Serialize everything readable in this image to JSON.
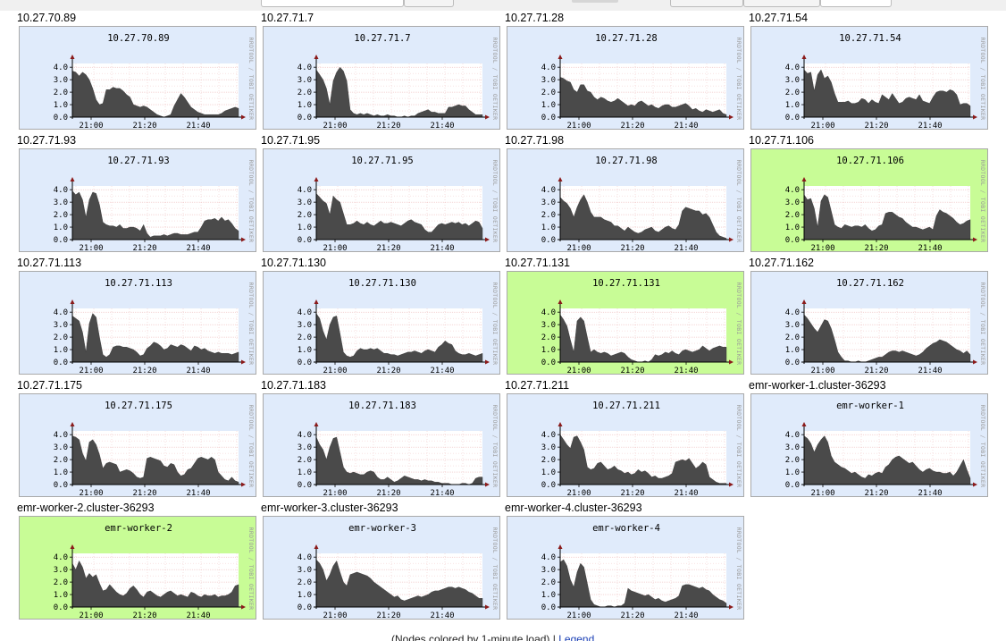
{
  "colors": {
    "normal_bg": "#e0ebfb",
    "hot_bg": "#c8fc96",
    "area": "#4a4a4a",
    "grid": "#e8a3a3"
  },
  "footer": {
    "caption": "(Nodes colored by 1-minute load) |",
    "legend_link": "Legend"
  },
  "graphs": [
    {
      "host": "10.27.70.89",
      "label": "10.27.70.89",
      "hot": false,
      "values": [
        3.7,
        3.6,
        3.3,
        3.6,
        3.4,
        3.0,
        2.3,
        1.4,
        1.0,
        1.1,
        2.2,
        2.2,
        2.4,
        2.3,
        2.3,
        2.1,
        1.8,
        1.6,
        1.0,
        0.9,
        0.8,
        0.9,
        0.8,
        0.6,
        0.4,
        0.2,
        0.1,
        0.0,
        0.1,
        0.2,
        0.9,
        1.4,
        1.9,
        1.6,
        1.2,
        0.8,
        0.6,
        0.4,
        0.3,
        0.2,
        0.2,
        0.2,
        0.2,
        0.2,
        0.3,
        0.5,
        0.6,
        0.7,
        0.8,
        0.7
      ]
    },
    {
      "host": "10.27.71.7",
      "label": "10.27.71.7",
      "hot": false,
      "values": [
        3.8,
        3.4,
        3.0,
        2.3,
        1.0,
        2.9,
        3.6,
        4.0,
        3.7,
        2.9,
        0.6,
        0.3,
        0.2,
        0.3,
        0.2,
        0.3,
        0.2,
        0.1,
        0.2,
        0.1,
        0.1,
        0.2,
        0.1,
        0.1,
        0.0,
        0.0,
        0.1,
        0.0,
        0.1,
        0.1,
        0.3,
        0.4,
        0.5,
        0.6,
        0.4,
        0.4,
        0.3,
        0.3,
        0.3,
        0.8,
        0.8,
        0.9,
        1.0,
        0.9,
        0.9,
        0.6,
        0.4,
        0.2,
        0.2,
        0.2
      ]
    },
    {
      "host": "10.27.71.28",
      "label": "10.27.71.28",
      "hot": false,
      "values": [
        3.2,
        3.1,
        2.9,
        2.8,
        2.2,
        2.0,
        2.6,
        2.6,
        2.1,
        2.0,
        1.6,
        1.4,
        1.6,
        1.5,
        1.3,
        1.2,
        1.3,
        1.5,
        1.3,
        1.1,
        0.9,
        1.0,
        0.9,
        1.2,
        1.3,
        1.1,
        0.9,
        1.0,
        0.8,
        0.7,
        0.9,
        1.0,
        1.0,
        0.8,
        0.8,
        0.9,
        1.0,
        1.1,
        0.9,
        0.6,
        0.7,
        0.5,
        0.4,
        0.6,
        0.5,
        0.4,
        0.5,
        0.6,
        0.3,
        0.2
      ]
    },
    {
      "host": "10.27.71.54",
      "label": "10.27.71.54",
      "hot": false,
      "values": [
        3.8,
        3.5,
        3.6,
        2.1,
        3.4,
        3.8,
        3.1,
        3.3,
        2.8,
        1.9,
        1.2,
        1.2,
        1.2,
        1.3,
        1.1,
        1.1,
        1.2,
        1.5,
        1.4,
        1.1,
        1.4,
        1.2,
        1.1,
        1.8,
        1.6,
        1.4,
        1.9,
        1.5,
        1.1,
        1.2,
        1.5,
        1.6,
        1.5,
        1.4,
        1.8,
        1.3,
        1.2,
        1.1,
        1.6,
        2.0,
        2.1,
        2.1,
        2.0,
        2.2,
        2.1,
        1.8,
        1.0,
        1.1,
        1.1,
        0.9
      ]
    },
    {
      "host": "10.27.71.93",
      "label": "10.27.71.93",
      "hot": false,
      "values": [
        3.9,
        3.6,
        3.8,
        3.2,
        1.8,
        3.2,
        3.8,
        3.7,
        2.8,
        1.4,
        1.2,
        1.1,
        1.1,
        1.0,
        1.2,
        0.9,
        0.9,
        1.0,
        1.0,
        0.9,
        0.7,
        1.2,
        0.5,
        0.2,
        0.3,
        0.3,
        0.3,
        0.4,
        0.3,
        0.4,
        0.5,
        0.5,
        0.4,
        0.4,
        0.4,
        0.5,
        0.6,
        0.6,
        1.0,
        1.5,
        1.6,
        1.6,
        1.7,
        1.5,
        1.8,
        1.5,
        1.6,
        1.3,
        0.9,
        0.7
      ]
    },
    {
      "host": "10.27.71.95",
      "label": "10.27.71.95",
      "hot": false,
      "values": [
        3.7,
        3.4,
        3.1,
        2.9,
        2.0,
        3.5,
        3.2,
        3.0,
        2.1,
        1.2,
        1.2,
        1.3,
        1.5,
        1.3,
        1.2,
        1.4,
        1.2,
        1.1,
        1.3,
        1.5,
        1.3,
        1.3,
        1.4,
        1.3,
        1.2,
        1.1,
        1.3,
        1.5,
        1.6,
        1.4,
        1.3,
        1.2,
        0.8,
        0.6,
        0.6,
        0.9,
        1.2,
        1.3,
        1.2,
        1.3,
        1.4,
        1.3,
        1.4,
        1.2,
        1.3,
        1.1,
        1.3,
        1.5,
        1.4,
        0.9
      ]
    },
    {
      "host": "10.27.71.98",
      "label": "10.27.71.98",
      "hot": false,
      "values": [
        3.4,
        3.1,
        2.9,
        2.5,
        1.8,
        2.6,
        3.2,
        3.6,
        3.0,
        2.2,
        1.8,
        1.8,
        1.8,
        1.6,
        1.5,
        1.4,
        1.1,
        1.1,
        0.9,
        0.7,
        1.0,
        0.8,
        0.6,
        0.5,
        0.6,
        0.8,
        0.9,
        1.0,
        0.7,
        0.6,
        0.8,
        1.0,
        1.1,
        0.9,
        0.8,
        1.2,
        2.3,
        2.6,
        2.5,
        2.4,
        2.3,
        2.3,
        2.0,
        2.1,
        1.8,
        1.2,
        0.6,
        0.3,
        0.2,
        0.1
      ]
    },
    {
      "host": "10.27.71.106",
      "label": "10.27.71.106",
      "hot": true,
      "values": [
        3.6,
        3.2,
        3.3,
        2.5,
        1.0,
        3.1,
        3.6,
        3.4,
        2.3,
        1.2,
        1.0,
        0.9,
        1.2,
        1.1,
        1.0,
        1.1,
        1.1,
        1.0,
        1.2,
        0.9,
        0.7,
        0.8,
        1.1,
        1.2,
        2.1,
        2.2,
        2.2,
        2.0,
        1.8,
        1.7,
        1.4,
        1.2,
        1.0,
        1.0,
        0.9,
        0.8,
        0.9,
        1.0,
        0.8,
        1.9,
        2.4,
        2.2,
        2.1,
        1.9,
        1.7,
        1.4,
        1.2,
        1.3,
        1.5,
        1.6
      ]
    },
    {
      "host": "10.27.71.113",
      "label": "10.27.71.113",
      "hot": false,
      "values": [
        3.7,
        3.5,
        3.3,
        2.4,
        0.8,
        3.1,
        3.9,
        3.6,
        2.0,
        0.6,
        0.4,
        0.6,
        1.2,
        1.3,
        1.3,
        1.2,
        1.2,
        1.1,
        1.0,
        0.8,
        0.5,
        0.6,
        1.1,
        1.3,
        1.6,
        1.5,
        1.3,
        1.0,
        1.1,
        1.4,
        1.3,
        1.2,
        1.4,
        1.3,
        1.1,
        0.9,
        1.3,
        1.2,
        1.0,
        1.1,
        0.9,
        0.8,
        0.7,
        0.8,
        0.7,
        0.7,
        0.7,
        0.6,
        0.7,
        0.8
      ]
    },
    {
      "host": "10.27.71.130",
      "label": "10.27.71.130",
      "hot": false,
      "values": [
        3.9,
        3.5,
        2.5,
        1.8,
        3.0,
        3.6,
        3.7,
        2.3,
        0.8,
        0.5,
        0.4,
        0.5,
        0.9,
        1.1,
        1.0,
        1.0,
        1.1,
        1.0,
        1.1,
        0.9,
        0.7,
        0.7,
        0.6,
        0.6,
        0.5,
        0.6,
        0.7,
        0.8,
        0.8,
        0.9,
        0.8,
        0.7,
        0.9,
        1.0,
        0.9,
        0.8,
        1.2,
        1.4,
        1.7,
        1.5,
        1.4,
        0.9,
        0.7,
        0.6,
        0.6,
        0.7,
        0.6,
        0.5,
        0.6,
        0.7
      ]
    },
    {
      "host": "10.27.71.131",
      "label": "10.27.71.131",
      "hot": true,
      "values": [
        3.8,
        3.4,
        2.9,
        1.8,
        0.8,
        3.3,
        3.6,
        3.3,
        2.0,
        0.8,
        1.0,
        0.8,
        0.7,
        0.8,
        0.7,
        0.5,
        0.6,
        0.7,
        0.8,
        0.7,
        0.4,
        0.2,
        0.1,
        0.0,
        0.0,
        0.1,
        0.0,
        0.2,
        0.6,
        0.5,
        0.6,
        0.8,
        0.7,
        0.9,
        0.7,
        0.6,
        0.9,
        1.0,
        0.9,
        0.8,
        0.9,
        1.0,
        1.3,
        1.1,
        0.9,
        1.1,
        1.2,
        1.3,
        1.2,
        1.2
      ]
    },
    {
      "host": "10.27.71.162",
      "label": "10.27.71.162",
      "hot": false,
      "values": [
        3.8,
        3.5,
        3.1,
        2.7,
        2.4,
        2.9,
        3.4,
        3.3,
        2.7,
        1.8,
        0.8,
        0.4,
        0.1,
        0.1,
        0.0,
        0.0,
        0.1,
        0.0,
        0.0,
        0.1,
        0.2,
        0.3,
        0.4,
        0.4,
        0.6,
        0.8,
        0.9,
        0.9,
        0.8,
        0.9,
        0.8,
        0.7,
        0.6,
        0.5,
        0.6,
        0.8,
        1.1,
        1.3,
        1.5,
        1.6,
        1.8,
        1.7,
        1.6,
        1.4,
        1.2,
        1.0,
        0.9,
        0.7,
        0.9,
        0.6
      ]
    },
    {
      "host": "10.27.71.175",
      "label": "10.27.71.175",
      "hot": false,
      "values": [
        3.9,
        3.8,
        3.6,
        2.5,
        1.9,
        3.4,
        3.6,
        3.2,
        2.4,
        1.3,
        1.7,
        1.8,
        1.7,
        1.6,
        1.0,
        1.1,
        1.2,
        1.1,
        0.9,
        0.6,
        0.5,
        0.6,
        2.1,
        2.2,
        2.1,
        2.0,
        1.9,
        1.5,
        1.4,
        1.7,
        1.6,
        1.0,
        0.7,
        0.8,
        1.2,
        1.3,
        1.7,
        2.1,
        2.2,
        2.1,
        2.0,
        2.2,
        2.0,
        1.0,
        0.7,
        0.4,
        0.3,
        0.6,
        0.3,
        0.2
      ]
    },
    {
      "host": "10.27.71.183",
      "label": "10.27.71.183",
      "hot": false,
      "values": [
        3.8,
        3.2,
        2.8,
        2.0,
        3.0,
        3.7,
        3.8,
        2.6,
        1.4,
        1.0,
        0.9,
        1.0,
        0.9,
        0.8,
        0.8,
        1.0,
        1.1,
        1.0,
        0.6,
        0.4,
        0.4,
        0.6,
        0.4,
        0.2,
        0.3,
        0.5,
        0.7,
        0.6,
        0.5,
        0.4,
        0.4,
        0.3,
        0.4,
        0.3,
        0.3,
        0.2,
        0.2,
        0.1,
        0.1,
        0.1,
        0.0,
        0.0,
        0.0,
        0.1,
        0.1,
        0.0,
        0.1,
        0.5,
        0.6,
        0.6
      ]
    },
    {
      "host": "10.27.71.211",
      "label": "10.27.71.211",
      "hot": false,
      "values": [
        4.0,
        3.6,
        3.2,
        2.9,
        3.8,
        3.9,
        3.4,
        2.8,
        1.4,
        1.2,
        1.3,
        1.7,
        1.8,
        1.5,
        1.2,
        1.3,
        1.5,
        1.2,
        1.1,
        0.9,
        1.0,
        0.8,
        0.9,
        1.2,
        1.0,
        1.1,
        0.9,
        0.6,
        0.7,
        0.5,
        0.5,
        0.6,
        0.7,
        0.9,
        1.8,
        1.9,
        2.0,
        1.9,
        2.1,
        1.7,
        1.3,
        1.5,
        1.8,
        1.6,
        0.6,
        0.4,
        0.2,
        0.1,
        0.1,
        0.1
      ]
    },
    {
      "host": "emr-worker-1.cluster-36293",
      "label": "emr-worker-1",
      "hot": false,
      "values": [
        3.9,
        3.7,
        3.3,
        2.6,
        3.2,
        3.6,
        3.9,
        3.4,
        2.3,
        1.8,
        1.6,
        1.4,
        1.3,
        1.1,
        0.9,
        1.0,
        0.8,
        0.6,
        0.5,
        0.8,
        0.7,
        0.9,
        1.0,
        0.9,
        1.4,
        1.6,
        2.0,
        2.2,
        2.3,
        2.1,
        1.9,
        1.7,
        1.8,
        1.5,
        1.2,
        1.0,
        1.2,
        1.3,
        1.1,
        1.0,
        1.0,
        0.9,
        0.9,
        1.0,
        0.7,
        1.0,
        1.5,
        2.0,
        1.2,
        0.5
      ]
    },
    {
      "host": "emr-worker-2.cluster-36293",
      "label": "emr-worker-2",
      "hot": true,
      "values": [
        3.5,
        3.0,
        3.7,
        3.2,
        2.3,
        2.7,
        2.4,
        2.6,
        1.9,
        1.3,
        1.4,
        1.8,
        1.5,
        1.2,
        1.0,
        0.9,
        1.1,
        1.5,
        1.7,
        1.4,
        1.0,
        0.8,
        1.2,
        1.3,
        1.1,
        0.9,
        0.8,
        1.0,
        1.2,
        1.3,
        1.1,
        0.9,
        1.0,
        0.9,
        0.8,
        1.2,
        1.1,
        0.9,
        0.8,
        1.0,
        0.9,
        0.9,
        1.0,
        0.8,
        0.9,
        0.9,
        1.0,
        1.2,
        1.7,
        1.8
      ]
    },
    {
      "host": "emr-worker-3.cluster-36293",
      "label": "emr-worker-3",
      "hot": false,
      "values": [
        3.8,
        3.5,
        3.0,
        2.1,
        2.6,
        3.3,
        3.7,
        2.8,
        2.0,
        1.7,
        2.6,
        2.7,
        2.8,
        2.7,
        2.6,
        2.5,
        2.3,
        2.0,
        1.8,
        1.6,
        1.4,
        1.2,
        1.0,
        0.8,
        0.9,
        0.6,
        0.5,
        0.6,
        0.7,
        0.8,
        0.9,
        0.8,
        0.9,
        1.0,
        1.2,
        1.3,
        1.3,
        1.4,
        1.5,
        1.6,
        1.6,
        1.5,
        1.6,
        1.5,
        1.4,
        1.2,
        1.1,
        0.9,
        0.7,
        0.7
      ]
    },
    {
      "host": "emr-worker-4.cluster-36293",
      "label": "emr-worker-4",
      "hot": false,
      "values": [
        3.6,
        3.8,
        3.3,
        2.2,
        1.6,
        2.8,
        3.5,
        3.2,
        1.9,
        0.6,
        0.2,
        0.1,
        0.0,
        0.0,
        0.1,
        0.1,
        0.0,
        0.1,
        0.1,
        0.3,
        1.5,
        1.3,
        1.2,
        1.1,
        1.0,
        0.9,
        1.0,
        0.8,
        0.6,
        0.7,
        0.5,
        0.4,
        0.5,
        0.6,
        0.7,
        0.9,
        1.7,
        1.8,
        1.8,
        1.7,
        1.6,
        1.5,
        1.6,
        1.4,
        1.3,
        1.0,
        0.8,
        0.6,
        0.5,
        0.3
      ]
    }
  ],
  "y_ticks": [
    "4.0",
    "3.0",
    "2.0",
    "1.0",
    "0.0"
  ],
  "x_ticks": [
    "21:00",
    "21:20",
    "21:40"
  ],
  "watermark": "RRDTOOL / TOBI OETIKER",
  "y_range": [
    0,
    4.3
  ]
}
